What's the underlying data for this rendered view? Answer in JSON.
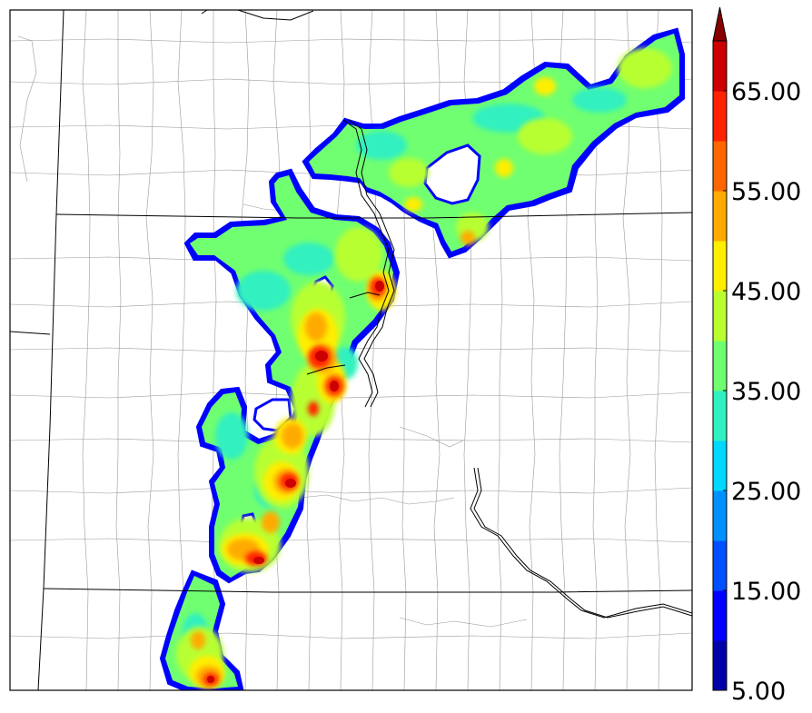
{
  "colorbar": {
    "levels": [
      5,
      10,
      15,
      20,
      25,
      30,
      35,
      40,
      45,
      50,
      55,
      60,
      65,
      70
    ],
    "colors": [
      "#0000a8",
      "#0000ff",
      "#0050ff",
      "#0090ff",
      "#00d8ff",
      "#30f0c0",
      "#70ff70",
      "#b8ff30",
      "#ffee00",
      "#ffaa00",
      "#ff6600",
      "#ff2200",
      "#cc0000",
      "#880000"
    ],
    "extend": "max",
    "tick_labels": [
      "5.00",
      "15.00",
      "25.00",
      "35.00",
      "45.00",
      "55.00",
      "65.00"
    ]
  },
  "basemap": {
    "land_color": "#ffffff",
    "border_color": "#000000",
    "county_line_color": "#999999"
  }
}
